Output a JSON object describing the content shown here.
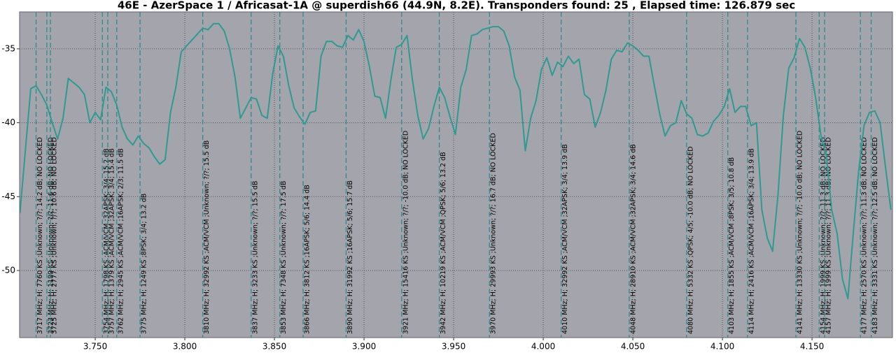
{
  "chart_data": {
    "type": "line",
    "title": "46E - AzerSpace 1 / Africasat-1A @ superdish66 (44.9N, 8.2E). Transponders found: 25 , Elapsed time: 126.879 sec",
    "xlim": [
      3.7078,
      4.1949
    ],
    "ylim": [
      -32.5,
      -54.54
    ],
    "xticks": [
      {
        "value": 3.75,
        "label": "3.750"
      },
      {
        "value": 3.8,
        "label": "3.800"
      },
      {
        "value": 3.85,
        "label": "3.850"
      },
      {
        "value": 3.9,
        "label": "3.900"
      },
      {
        "value": 3.95,
        "label": "3.950"
      },
      {
        "value": 4.0,
        "label": "4.000"
      },
      {
        "value": 4.05,
        "label": "4.050"
      },
      {
        "value": 4.1,
        "label": "4.100"
      },
      {
        "value": 4.15,
        "label": "4.150"
      }
    ],
    "yticks": [
      -35,
      -40,
      -45,
      -50
    ],
    "grid": true,
    "background": "#a4a4ac",
    "x": [
      3.708,
      3.711,
      3.714,
      3.717,
      3.72,
      3.723,
      3.726,
      3.729,
      3.732,
      3.735,
      3.738,
      3.741,
      3.744,
      3.747,
      3.75,
      3.753,
      3.756,
      3.759,
      3.762,
      3.765,
      3.768,
      3.771,
      3.774,
      3.777,
      3.78,
      3.783,
      3.786,
      3.789,
      3.792,
      3.795,
      3.798,
      3.801,
      3.804,
      3.807,
      3.81,
      3.813,
      3.816,
      3.819,
      3.822,
      3.825,
      3.828,
      3.831,
      3.834,
      3.837,
      3.84,
      3.843,
      3.846,
      3.849,
      3.852,
      3.855,
      3.858,
      3.861,
      3.864,
      3.867,
      3.87,
      3.873,
      3.876,
      3.879,
      3.882,
      3.885,
      3.888,
      3.891,
      3.894,
      3.897,
      3.9,
      3.903,
      3.906,
      3.909,
      3.912,
      3.915,
      3.918,
      3.921,
      3.924,
      3.927,
      3.93,
      3.933,
      3.936,
      3.939,
      3.942,
      3.945,
      3.948,
      3.951,
      3.954,
      3.957,
      3.96,
      3.963,
      3.966,
      3.969,
      3.972,
      3.975,
      3.978,
      3.981,
      3.984,
      3.987,
      3.99,
      3.993,
      3.996,
      3.999,
      4.002,
      4.005,
      4.008,
      4.011,
      4.014,
      4.017,
      4.02,
      4.023,
      4.026,
      4.029,
      4.032,
      4.035,
      4.038,
      4.041,
      4.044,
      4.047,
      4.05,
      4.053,
      4.056,
      4.059,
      4.062,
      4.065,
      4.068,
      4.071,
      4.074,
      4.077,
      4.08,
      4.083,
      4.086,
      4.089,
      4.092,
      4.095,
      4.098,
      4.101,
      4.104,
      4.107,
      4.11,
      4.113,
      4.116,
      4.119,
      4.122,
      4.125,
      4.128,
      4.131,
      4.134,
      4.137,
      4.14,
      4.143,
      4.146,
      4.149,
      4.152,
      4.155,
      4.158,
      4.161,
      4.164,
      4.167,
      4.17,
      4.173,
      4.176,
      4.179,
      4.182,
      4.185,
      4.188,
      4.191,
      4.194
    ],
    "series": [
      {
        "color": "#2e9a92",
        "values": [
          -46.1,
          -41.9,
          -37.7,
          -37.5,
          -38.1,
          -38.8,
          -40.0,
          -41.1,
          -39.7,
          -37.0,
          -37.3,
          -37.6,
          -38.1,
          -40.0,
          -39.3,
          -39.8,
          -37.6,
          -37.9,
          -38.8,
          -40.3,
          -41.1,
          -41.5,
          -40.9,
          -41.4,
          -41.7,
          -42.3,
          -42.8,
          -42.5,
          -39.3,
          -37.6,
          -35.2,
          -34.8,
          -34.4,
          -34.0,
          -33.6,
          -33.7,
          -33.3,
          -33.3,
          -33.8,
          -35.0,
          -36.9,
          -39.7,
          -39.0,
          -38.3,
          -38.4,
          -39.5,
          -39.7,
          -36.7,
          -34.8,
          -35.5,
          -37.5,
          -39.0,
          -39.6,
          -40.1,
          -39.3,
          -39.2,
          -35.5,
          -34.5,
          -34.5,
          -34.8,
          -34.9,
          -34.1,
          -34.4,
          -33.7,
          -34.5,
          -36.2,
          -38.2,
          -38.3,
          -39.7,
          -37.1,
          -34.9,
          -34.7,
          -34.1,
          -37.1,
          -39.5,
          -41.1,
          -40.4,
          -38.9,
          -37.6,
          -38.3,
          -39.6,
          -40.8,
          -37.6,
          -36.4,
          -34.1,
          -34.0,
          -33.7,
          -33.6,
          -33.5,
          -33.5,
          -33.8,
          -34.8,
          -36.9,
          -37.8,
          -41.9,
          -39.7,
          -38.5,
          -36.4,
          -35.6,
          -36.8,
          -35.9,
          -36.2,
          -35.5,
          -36.0,
          -35.7,
          -38.1,
          -38.4,
          -40.3,
          -39.3,
          -37.8,
          -35.7,
          -35.1,
          -35.2,
          -34.6,
          -34.8,
          -35.1,
          -35.5,
          -35.5,
          -37.5,
          -39.4,
          -40.9,
          -40.2,
          -40.0,
          -38.5,
          -39.4,
          -39.7,
          -40.8,
          -40.9,
          -40.7,
          -39.9,
          -39.5,
          -38.9,
          -37.7,
          -39.3,
          -38.9,
          -38.9,
          -40.2,
          -40.0,
          -45.9,
          -47.8,
          -48.7,
          -44.9,
          -39.5,
          -36.3,
          -35.6,
          -34.3,
          -34.9,
          -36.3,
          -38.3,
          -40.9,
          -42.2,
          -45.9,
          -47.5,
          -50.6,
          -51.9,
          -47.5,
          -43.3,
          -40.2,
          -39.3,
          -39.2,
          -40.0,
          -43.0,
          -45.9
        ]
      }
    ],
    "marker_color": "#2a8c8c",
    "transponders": [
      {
        "x": 3.717,
        "label": "3717 MHz; H; 7760 KS ;Unknown; ?/?; 14.2 dB; NO LOCKED"
      },
      {
        "x": 3.723,
        "label": "3723 MHz; H; 1199 KS ;Unknown; ?/?; 11.6 dB; NO LOCKED"
      },
      {
        "x": 3.725,
        "label": "3725 MHz; H; 2777 KS ;Unknown; ?/?; 10.6 dB; NO LOCKED"
      },
      {
        "x": 3.754,
        "label": "3754 MHz; H; 1798 KS ;ACM/VCM ;32APSK; 3/4; 15.2 dB"
      },
      {
        "x": 3.757,
        "label": "3757 MHz; H; 1379 KS ;ACM/VCM ;32APSK; 3/4; 15.4 dB"
      },
      {
        "x": 3.762,
        "label": "3762 MHz; H; 2945 KS ;ACM/VCM ;16APSK; 2/3; 11.5 dB"
      },
      {
        "x": 3.775,
        "label": "3775 MHz; H; 1249 KS ;8PSK; 3/4; 13.2 dB"
      },
      {
        "x": 3.81,
        "label": "3810 MHz; H; 32992 KS ;ACM/VCM ;Unknown; ?/?; 15.5 dB"
      },
      {
        "x": 3.837,
        "label": "3837 MHz; H; 3233 KS ;Unknown; ?/?; 15.5 dB"
      },
      {
        "x": 3.853,
        "label": "3853 MHz; H; 7348 KS ;Unknown; ?/?; 17.5 dB"
      },
      {
        "x": 3.866,
        "label": "3866 MHz; H; 3812 KS ;16APSK; 5/6; 14.4 dB"
      },
      {
        "x": 3.89,
        "label": "3890 MHz; H; 31992 KS ;16APSK; 5/6; 15.7 dB"
      },
      {
        "x": 3.921,
        "label": "3921 MHz; H; 15416 KS ;Unknown; ?/?; -10.0 dB; NO LOCKED"
      },
      {
        "x": 3.942,
        "label": "3942 MHz; H; 10219 KS ;ACM/VCM ;QPSK; 5/6; 13.2 dB"
      },
      {
        "x": 3.97,
        "label": "3970 MHz; H; 29993 KS ;Unknown; ?/?; 16.7 dB; NO LOCKED"
      },
      {
        "x": 4.01,
        "label": "4010 MHz; H; 32992 KS ;ACM/VCM ;32APSK; 3/4; 13.9 dB"
      },
      {
        "x": 4.048,
        "label": "4048 MHz; H; 28910 KS ;ACM/VCM ;32APSK; 3/4; 14.6 dB"
      },
      {
        "x": 4.08,
        "label": "4080 MHz; H; 5332 KS ;QPSK; 4/5; -10.0 dB; NO LOCKED"
      },
      {
        "x": 4.103,
        "label": "4103 MHz; H; 1855 KS ;ACM/VCM ;8PSK; 3/5; 10.8 dB"
      },
      {
        "x": 4.114,
        "label": "4114 MHz; H; 2416 KS ;ACM/VCM ;16APSK; 3/4; 13.9 dB"
      },
      {
        "x": 4.141,
        "label": "4141 MHz; H; 13330 KS ;Unknown; ?/?; -10.0 dB; NO LOCKED"
      },
      {
        "x": 4.154,
        "label": "4154 MHz; H; 1999 KS ;Unknown; ?/?; 11.3 dB; NO LOCKED"
      },
      {
        "x": 4.157,
        "label": "4157 MHz; H; 1999 KS ;Unknown; ?/?; 11.3 dB; NO LOCKED"
      },
      {
        "x": 4.177,
        "label": "4177 MHz; H; 2570 KS ;Unknown; ?/?; 11.3 dB; NO LOCKED"
      },
      {
        "x": 4.183,
        "label": "4183 MHz; H; 3331 KS ;Unknown; ?/?; 12.5 dB; NO LOCKED"
      }
    ]
  }
}
